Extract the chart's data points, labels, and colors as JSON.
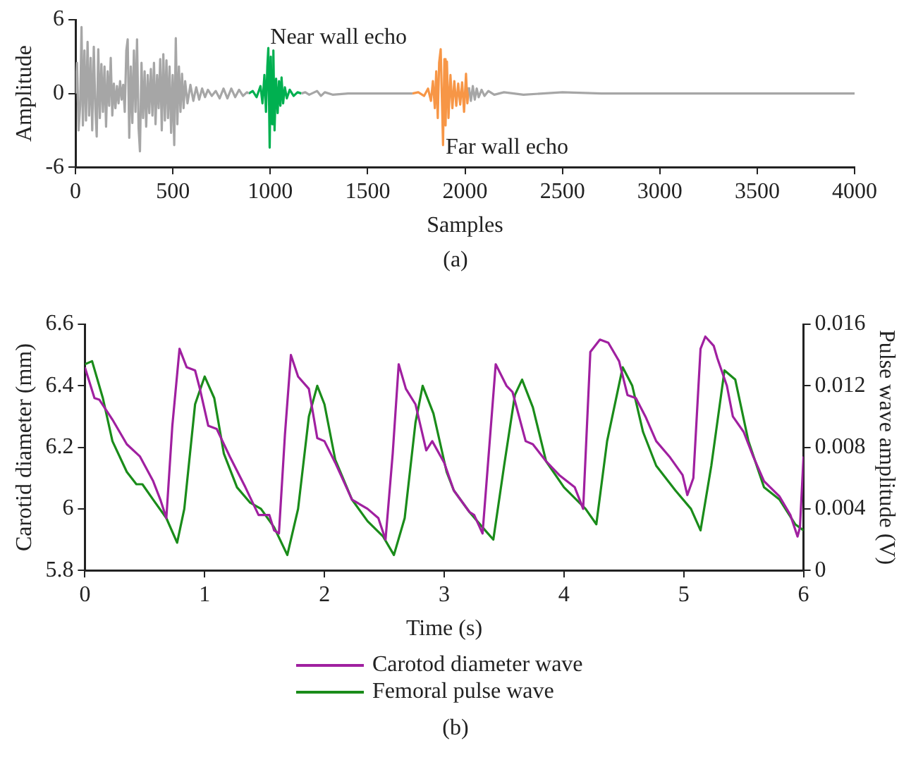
{
  "chart_data": [
    {
      "type": "line",
      "xlabel": "Samples",
      "ylabel": "Amplitude",
      "xlim": [
        0,
        4000
      ],
      "xticks": [
        0,
        500,
        1000,
        1500,
        2000,
        2500,
        3000,
        3500,
        4000
      ],
      "ylim": [
        -6,
        6
      ],
      "yticks": [
        -6,
        0,
        6
      ],
      "grid": false,
      "legend": false,
      "marker": "none",
      "line_style": "solid",
      "series": [
        {
          "color": "#a6a6a6",
          "x": [
            0,
            8,
            16,
            24,
            31,
            38,
            46,
            54,
            62,
            70,
            78,
            86,
            94,
            102,
            109,
            117,
            125,
            133,
            141,
            149,
            157,
            165,
            173,
            181,
            189,
            197,
            205,
            213,
            221,
            229,
            237,
            245,
            253,
            261,
            268,
            276,
            284,
            292,
            300,
            308,
            316,
            324,
            331,
            339,
            347,
            355,
            363,
            371,
            379,
            387,
            395,
            403,
            411,
            419,
            427,
            435,
            443,
            451,
            459,
            467,
            475,
            483,
            491,
            499,
            507,
            515,
            523,
            531,
            539,
            547,
            555,
            563,
            575,
            590,
            605,
            620,
            635,
            650,
            665,
            680,
            700,
            720,
            740,
            760,
            780,
            800,
            820,
            840,
            860,
            880,
            890,
            1000,
            1160,
            1180,
            1200,
            1240,
            1260,
            1280,
            1320,
            1400,
            1500,
            1600,
            1730,
            1850,
            2020,
            2030,
            2040,
            2050,
            2060,
            2070,
            2085,
            2100,
            2120,
            2150,
            2200,
            2300,
            2500,
            2700,
            3000,
            3500,
            4000
          ],
          "values": [
            0,
            2.5,
            -3,
            -1,
            5.4,
            -2.6,
            3.5,
            -2.2,
            4.2,
            -1.8,
            2.9,
            -3,
            3.8,
            -1.2,
            -3.5,
            3.6,
            -2,
            2.4,
            -1.5,
            2.2,
            -2.7,
            1.8,
            -1,
            2.9,
            -1.8,
            0.8,
            -1.2,
            0.6,
            -0.8,
            1,
            -0.5,
            0.7,
            -1.5,
            3.5,
            4.4,
            -3.6,
            2.2,
            -2.4,
            3.5,
            -1.5,
            4.4,
            -2.8,
            -4.7,
            2.5,
            -2,
            1.8,
            -2.7,
            1.5,
            -1.6,
            2,
            -1.8,
            2.5,
            -2.5,
            1.5,
            -1.2,
            2.8,
            -3,
            3.2,
            -2.2,
            2.7,
            -2,
            2.2,
            -3.2,
            1.5,
            -4.2,
            4.5,
            -2.5,
            2.2,
            -1.5,
            1.6,
            -1.2,
            1,
            -0.8,
            0.7,
            -0.6,
            0.5,
            -0.5,
            0.4,
            -0.3,
            0.3,
            -0.2,
            0.2,
            -0.4,
            0.4,
            -0.4,
            0.4,
            -0.3,
            0.3,
            -0.2,
            0.1,
            0,
            null,
            0,
            0.1,
            -0.1,
            0.2,
            -0.2,
            0.1,
            -0.1,
            0,
            0,
            0,
            0,
            null,
            0.5,
            -0.6,
            0.6,
            -0.5,
            0.4,
            -0.3,
            0.3,
            -0.2,
            0.2,
            -0.1,
            0.1,
            -0.1,
            0.1,
            0,
            0,
            0,
            0
          ]
        },
        {
          "color": "#00b050",
          "x": [
            890,
            910,
            930,
            950,
            960,
            970,
            978,
            985,
            990,
            997,
            1003,
            1010,
            1016,
            1022,
            1030,
            1038,
            1045,
            1052,
            1058,
            1066,
            1075,
            1085,
            1100,
            1120,
            1140,
            1160
          ],
          "values": [
            0,
            0.2,
            -0.3,
            0.6,
            -0.8,
            1.5,
            -1.5,
            2.2,
            3.7,
            -4.4,
            3,
            -2.5,
            3.5,
            -3,
            1.2,
            -1.6,
            1,
            -1,
            1.3,
            -0.8,
            0.5,
            -0.4,
            0.3,
            -0.2,
            0.1,
            0
          ]
        },
        {
          "color": "#f79646",
          "x": [
            1730,
            1760,
            1790,
            1810,
            1825,
            1835,
            1845,
            1852,
            1860,
            1867,
            1875,
            1887,
            1894,
            1900,
            1907,
            1915,
            1925,
            1935,
            1945,
            1955,
            1965,
            1975,
            1985,
            1995,
            2005,
            2012,
            2020
          ],
          "values": [
            0,
            0.1,
            -0.2,
            0.4,
            -0.6,
            1,
            -1.2,
            1.8,
            -2,
            2.5,
            3.6,
            -4.2,
            2.8,
            -2.6,
            2.6,
            -2,
            1.5,
            -1.2,
            1,
            -1,
            0.8,
            -0.9,
            0.9,
            -1.5,
            1.6,
            -0.8,
            0.5
          ]
        }
      ],
      "annotations": [
        "Near wall echo",
        "Far wall echo",
        "(a)"
      ]
    },
    {
      "type": "line",
      "xlabel": "Time (s)",
      "ylabel": "Carotid diameter (mm)",
      "y2label": "Pulse wave amplitude (V)",
      "xlim": [
        0,
        6
      ],
      "xticks": [
        0,
        1,
        2,
        3,
        4,
        5,
        6
      ],
      "ylim": [
        5.8,
        6.6
      ],
      "yticks": [
        5.8,
        6,
        6.2,
        6.4,
        6.6
      ],
      "y2lim": [
        0,
        0.016
      ],
      "y2ticks": [
        0,
        0.004,
        0.008,
        0.012,
        0.016
      ],
      "grid": false,
      "legend": "bottom",
      "marker": "none",
      "line_style": "solid",
      "series": [
        {
          "name": "Carotod diameter wave",
          "color": "#a020a0",
          "x": [
            0,
            0.08,
            0.12,
            0.23,
            0.35,
            0.46,
            0.57,
            0.63,
            0.68,
            0.73,
            0.79,
            0.85,
            0.92,
            0.96,
            1.03,
            1.1,
            1.21,
            1.34,
            1.45,
            1.54,
            1.58,
            1.62,
            1.67,
            1.72,
            1.78,
            1.87,
            1.94,
            2,
            2.09,
            2.23,
            2.36,
            2.45,
            2.51,
            2.57,
            2.62,
            2.68,
            2.76,
            2.85,
            2.9,
            3,
            3.08,
            3.21,
            3.25,
            3.32,
            3.43,
            3.52,
            3.57,
            3.68,
            3.74,
            3.85,
            3.96,
            4.09,
            4.16,
            4.22,
            4.3,
            4.37,
            4.46,
            4.53,
            4.6,
            4.68,
            4.77,
            4.88,
            4.99,
            5.03,
            5.08,
            5.14,
            5.18,
            5.25,
            5.28,
            5.36,
            5.41,
            5.5,
            5.58,
            5.67,
            5.8,
            5.89,
            5.95,
            5.97,
            6
          ],
          "values": [
            6.46,
            6.36,
            6.355,
            6.29,
            6.21,
            6.17,
            6.09,
            6.03,
            5.97,
            6.27,
            6.52,
            6.46,
            6.45,
            6.39,
            6.27,
            6.26,
            6.17,
            6.07,
            5.98,
            5.98,
            5.93,
            5.92,
            6.24,
            6.5,
            6.43,
            6.39,
            6.23,
            6.22,
            6.15,
            6.03,
            6,
            5.97,
            5.9,
            6.18,
            6.47,
            6.39,
            6.34,
            6.19,
            6.22,
            6.15,
            6.06,
            5.99,
            5.98,
            5.92,
            6.47,
            6.4,
            6.38,
            6.22,
            6.21,
            6.155,
            6.11,
            6.07,
            6,
            6.51,
            6.55,
            6.54,
            6.48,
            6.37,
            6.36,
            6.3,
            6.22,
            6.17,
            6.11,
            6.045,
            6.1,
            6.52,
            6.56,
            6.53,
            6.49,
            6.4,
            6.3,
            6.25,
            6.17,
            6.09,
            6.04,
            5.98,
            5.91,
            5.94,
            6.17
          ]
        },
        {
          "name": "Femoral pulse wave",
          "color": "#1a8c1a",
          "axis": "y2",
          "x": [
            0,
            0.06,
            0.15,
            0.23,
            0.35,
            0.43,
            0.48,
            0.57,
            0.68,
            0.77,
            0.83,
            0.92,
            1,
            1.08,
            1.16,
            1.27,
            1.38,
            1.47,
            1.58,
            1.69,
            1.78,
            1.87,
            1.94,
            2,
            2.09,
            2.23,
            2.36,
            2.49,
            2.58,
            2.67,
            2.76,
            2.82,
            2.91,
            3.02,
            3.08,
            3.21,
            3.32,
            3.41,
            3.5,
            3.59,
            3.65,
            3.74,
            3.85,
            4,
            4.18,
            4.27,
            4.36,
            4.49,
            4.57,
            4.66,
            4.77,
            4.93,
            5.06,
            5.14,
            5.23,
            5.34,
            5.43,
            5.54,
            5.67,
            5.8,
            5.93,
            6
          ],
          "values": [
            0.0134,
            0.0136,
            0.0112,
            0.0084,
            0.0064,
            0.0056,
            0.0056,
            0.0046,
            0.0034,
            0.0018,
            0.004,
            0.0108,
            0.0126,
            0.0112,
            0.0076,
            0.0054,
            0.0044,
            0.004,
            0.0028,
            0.001,
            0.004,
            0.01,
            0.012,
            0.0108,
            0.0072,
            0.0046,
            0.0032,
            0.0022,
            0.001,
            0.0034,
            0.0096,
            0.012,
            0.0102,
            0.0064,
            0.0052,
            0.0038,
            0.0028,
            0.002,
            0.0068,
            0.0114,
            0.0124,
            0.0106,
            0.0071,
            0.0054,
            0.004,
            0.003,
            0.0084,
            0.0132,
            0.012,
            0.009,
            0.0068,
            0.0052,
            0.004,
            0.0026,
            0.0068,
            0.013,
            0.0124,
            0.0084,
            0.0054,
            0.0046,
            0.003,
            0.0026
          ]
        }
      ],
      "annotations": [
        "(b)"
      ]
    }
  ]
}
